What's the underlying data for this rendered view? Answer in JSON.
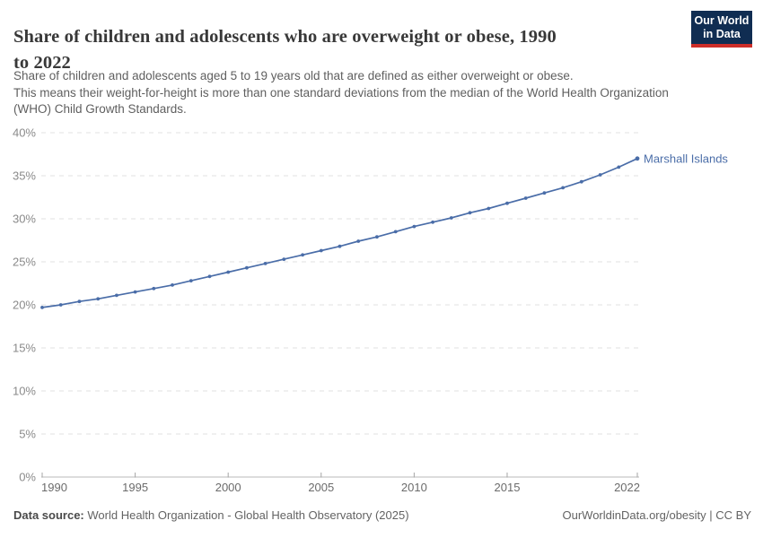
{
  "header": {
    "title_line1": "Share of children and adolescents who are overweight or obese, 1990",
    "title_line2": "to 2022",
    "logo": {
      "line1": "Our World",
      "line2": "in Data",
      "bg_color": "#102d52",
      "bar_color": "#cd2d28"
    }
  },
  "subtitle": {
    "line1": "Share of children and adolescents aged 5 to 19 years old that are defined as either overweight or obese.",
    "line2": "This means their weight-for-height is more than one standard deviations from the median of the World Health Organization",
    "line3": "(WHO) Child Growth Standards."
  },
  "chart_data": {
    "type": "line",
    "title": "Share of children and adolescents who are overweight or obese, 1990 to 2022",
    "xlabel": "",
    "ylabel": "",
    "xlim": [
      1990,
      2022
    ],
    "ylim": [
      0,
      40
    ],
    "grid": "horizontal-dashed",
    "legend_position": "end-of-line-label",
    "xticks": [
      1990,
      1995,
      2000,
      2005,
      2010,
      2015,
      2022
    ],
    "xtick_labels": [
      "1990",
      "1995",
      "2000",
      "2005",
      "2010",
      "2015",
      "2022"
    ],
    "ytick_values": [
      0,
      5,
      10,
      15,
      20,
      25,
      30,
      35,
      40
    ],
    "ytick_labels": [
      "0%",
      "5%",
      "10%",
      "15%",
      "20%",
      "25%",
      "30%",
      "35%",
      "40%"
    ],
    "series": [
      {
        "name": "Marshall Islands",
        "color": "#4a6da8",
        "x": [
          1990,
          1991,
          1992,
          1993,
          1994,
          1995,
          1996,
          1997,
          1998,
          1999,
          2000,
          2001,
          2002,
          2003,
          2004,
          2005,
          2006,
          2007,
          2008,
          2009,
          2010,
          2011,
          2012,
          2013,
          2014,
          2015,
          2016,
          2017,
          2018,
          2019,
          2020,
          2021,
          2022
        ],
        "values": [
          19.7,
          20.0,
          20.4,
          20.7,
          21.1,
          21.5,
          21.9,
          22.3,
          22.8,
          23.3,
          23.8,
          24.3,
          24.8,
          25.3,
          25.8,
          26.3,
          26.8,
          27.4,
          27.9,
          28.5,
          29.1,
          29.6,
          30.1,
          30.7,
          31.2,
          31.8,
          32.4,
          33.0,
          33.6,
          34.3,
          35.1,
          36.0,
          37.0
        ]
      }
    ],
    "colors": {
      "gridline": "#e0e0e0",
      "axis_line": "#c8c8c8",
      "tick_mark": "#a5a5a5",
      "ytick_label": "#8a8a8a",
      "xtick_label": "#6b6b6b"
    }
  },
  "footer": {
    "source_label": "Data source:",
    "source_text": "World Health Organization - Global Health Observatory (2025)",
    "right_text": "OurWorldinData.org/obesity | CC BY"
  }
}
